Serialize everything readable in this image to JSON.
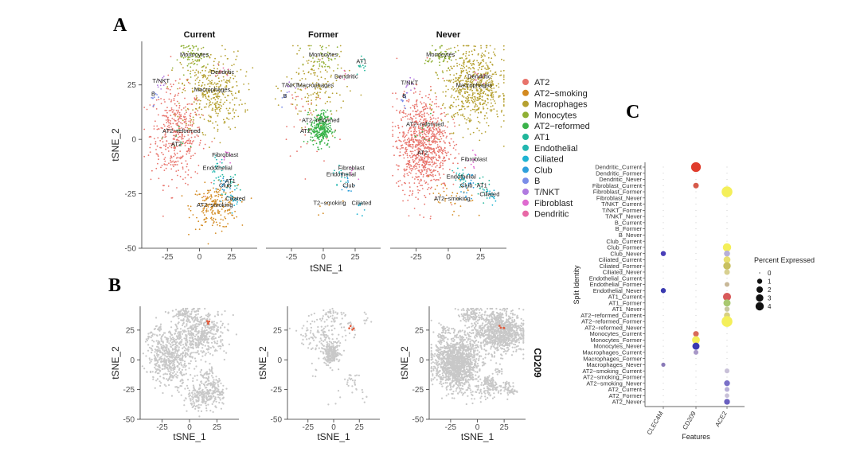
{
  "panel_letters": [
    "A",
    "B",
    "C"
  ],
  "chart_data": [
    {
      "type": "scatter",
      "panel": "A",
      "facets": [
        "Current",
        "Former",
        "Never"
      ],
      "xlabel": "tSNE_1",
      "ylabel": "tSNE_2",
      "x_ticks": [
        -25,
        0,
        25
      ],
      "y_ticks": [
        25,
        0,
        -25,
        -50
      ],
      "ylim": [
        -50,
        45
      ],
      "legend": {
        "position": "right",
        "entries": [
          {
            "name": "AT2",
            "color": "#e8736b"
          },
          {
            "name": "AT2−smoking",
            "color": "#d38a20"
          },
          {
            "name": "Macrophages",
            "color": "#b5a030"
          },
          {
            "name": "Monocytes",
            "color": "#8fb034"
          },
          {
            "name": "AT2−reformed",
            "color": "#3ab34a"
          },
          {
            "name": "AT1",
            "color": "#20b69a"
          },
          {
            "name": "Endothelial",
            "color": "#22b7b0"
          },
          {
            "name": "Ciliated",
            "color": "#1fb3d2"
          },
          {
            "name": "Club",
            "color": "#2e9fdb"
          },
          {
            "name": "B",
            "color": "#7a8de8"
          },
          {
            "name": "T/NKT",
            "color": "#b07ae0"
          },
          {
            "name": "Fibroblast",
            "color": "#df6bd0"
          },
          {
            "name": "Dendritic",
            "color": "#e868a6"
          }
        ]
      },
      "annotations": {
        "Current": [
          "Monocytes",
          "T/NKT",
          "Dendritic",
          "Macrophages",
          "B",
          "AT2−reformed",
          "AT2",
          "Fibroblast",
          "Endothelial",
          "AT1",
          "Club",
          "Ciliated",
          "AT2−smoking"
        ],
        "Former": [
          "Monocytes",
          "AT1",
          "Dendritic",
          "T/NKT",
          "B",
          "Macrophages",
          "AT2−reformed",
          "T2−smoking",
          "AT2",
          "Fibroblast",
          "Endothelial",
          "Club",
          "Ciliated"
        ],
        "Never": [
          "Monocytes",
          "Dendritic",
          "T/NKT",
          "B",
          "Macrophages",
          "AT2−reformed",
          "AT2",
          "Fibroblast",
          "Endothelial",
          "Club",
          "AT2−smoking",
          "Ciliated",
          "AT1"
        ]
      },
      "clusters": [
        {
          "name": "AT2",
          "color": "#e8736b",
          "center": {
            "Current": [
              -18,
              2
            ],
            "Former": [
              -14,
              8
            ],
            "Never": [
              -20,
              -2
            ]
          },
          "spread": [
            10,
            11
          ],
          "n": {
            "Current": 420,
            "Former": 40,
            "Never": 900
          }
        },
        {
          "name": "AT2−smoking",
          "color": "#d38a20",
          "center": {
            "Current": [
              12,
              -31
            ],
            "Former": [
              5,
              -30
            ],
            "Never": [
              3,
              -28
            ]
          },
          "spread": [
            9,
            5
          ],
          "n": {
            "Current": 200,
            "Former": 6,
            "Never": 40
          }
        },
        {
          "name": "Macrophages",
          "color": "#b5a030",
          "center": {
            "Current": [
              10,
              22
            ],
            "Former": [
              -6,
              24
            ],
            "Never": [
              20,
              24
            ]
          },
          "spread": [
            12,
            9
          ],
          "n": {
            "Current": 380,
            "Former": 160,
            "Never": 620
          }
        },
        {
          "name": "Monocytes",
          "color": "#8fb034",
          "center": {
            "Current": [
              -4,
              38
            ],
            "Former": [
              0,
              38
            ],
            "Never": [
              -6,
              38
            ]
          },
          "spread": [
            6,
            3
          ],
          "n": {
            "Current": 70,
            "Former": 40,
            "Never": 60
          }
        },
        {
          "name": "AT2−reformed",
          "color": "#3ab34a",
          "center": {
            "Current": [
              -14,
              0
            ],
            "Former": [
              -2,
              5
            ],
            "Never": [
              -18,
              3
            ]
          },
          "spread": [
            4,
            4
          ],
          "n": {
            "Current": 10,
            "Former": 280,
            "Never": 10
          }
        },
        {
          "name": "AT1",
          "color": "#20b69a",
          "center": {
            "Current": [
              24,
              -20
            ],
            "Former": [
              30,
              35
            ],
            "Never": [
              26,
              -22
            ]
          },
          "spread": [
            3,
            3
          ],
          "n": {
            "Current": 20,
            "Former": 12,
            "Never": 20
          }
        },
        {
          "name": "Endothelial",
          "color": "#22b7b0",
          "center": {
            "Current": [
              14,
              -14
            ],
            "Former": [
              14,
              -17
            ],
            "Never": [
              10,
              -18
            ]
          },
          "spread": [
            3,
            3
          ],
          "n": {
            "Current": 25,
            "Former": 15,
            "Never": 25
          }
        },
        {
          "name": "Ciliated",
          "color": "#1fb3d2",
          "center": {
            "Current": [
              28,
              -28
            ],
            "Former": [
              30,
              -30
            ],
            "Never": [
              32,
              -26
            ]
          },
          "spread": [
            2,
            2
          ],
          "n": {
            "Current": 15,
            "Former": 8,
            "Never": 18
          }
        },
        {
          "name": "Club",
          "color": "#2e9fdb",
          "center": {
            "Current": [
              20,
              -22
            ],
            "Former": [
              20,
              -22
            ],
            "Never": [
              14,
              -22
            ]
          },
          "spread": [
            3,
            3
          ],
          "n": {
            "Current": 20,
            "Former": 12,
            "Never": 25
          }
        },
        {
          "name": "B",
          "color": "#7a8de8",
          "center": {
            "Current": [
              -36,
              20
            ],
            "Former": [
              -30,
              19
            ],
            "Never": [
              -34,
              19
            ]
          },
          "spread": [
            1.5,
            2
          ],
          "n": {
            "Current": 10,
            "Former": 5,
            "Never": 12
          }
        },
        {
          "name": "T/NKT",
          "color": "#b07ae0",
          "center": {
            "Current": [
              -30,
              26
            ],
            "Former": [
              -26,
              24
            ],
            "Never": [
              -30,
              25
            ]
          },
          "spread": [
            2,
            2
          ],
          "n": {
            "Current": 10,
            "Former": 5,
            "Never": 12
          }
        },
        {
          "name": "Fibroblast",
          "color": "#df6bd0",
          "center": {
            "Current": [
              20,
              -8
            ],
            "Former": [
              22,
              -14
            ],
            "Never": [
              20,
              -10
            ]
          },
          "spread": [
            2,
            2
          ],
          "n": {
            "Current": 10,
            "Former": 6,
            "Never": 10
          }
        },
        {
          "name": "Dendritic",
          "color": "#e868a6",
          "center": {
            "Current": [
              18,
              30
            ],
            "Former": [
              18,
              28
            ],
            "Never": [
              24,
              28
            ]
          },
          "spread": [
            3,
            2
          ],
          "n": {
            "Current": 10,
            "Former": 6,
            "Never": 10
          }
        }
      ]
    },
    {
      "type": "scatter",
      "panel": "B",
      "facets": [
        "Current",
        "Former",
        "Never"
      ],
      "feature": "CD209",
      "xlabel": "tSNE_1",
      "ylabel": "tSNE_2",
      "x_ticks": [
        -25,
        0,
        25
      ],
      "y_ticks": [
        25,
        0,
        -25,
        -50
      ],
      "ylim": [
        -50,
        45
      ],
      "color_base": "#c8c8c8",
      "color_high": "#e05a3a"
    },
    {
      "type": "dot",
      "panel": "C",
      "xlabel": "Features",
      "ylabel": "Split Identity",
      "features": [
        "CLEC4M",
        "CD209",
        "ACE2"
      ],
      "legend": {
        "title": "Percent Expressed",
        "position": "right",
        "entries": [
          {
            "label": "0",
            "value": 0
          },
          {
            "label": "1",
            "value": 1
          },
          {
            "label": "2",
            "value": 2
          },
          {
            "label": "3",
            "value": 3
          },
          {
            "label": "4",
            "value": 4
          }
        ]
      },
      "rows": [
        "Dendritic_Current",
        "Dendritic_Former",
        "Dendritic_Never",
        "Fibroblast_Current",
        "Fibroblast_Former",
        "Fibroblast_Never",
        "T/NKT_Current",
        "T/NKT_Former",
        "T/NKT_Never",
        "B_Current",
        "B_Former",
        "B_Never",
        "Club_Current",
        "Club_Former",
        "Club_Never",
        "Ciliated_Current",
        "Ciliated_Former",
        "Ciliated_Never",
        "Endothelial_Current",
        "Endothelial_Former",
        "Endothelial_Never",
        "AT1_Current",
        "AT1_Former",
        "AT1_Never",
        "AT2−reformed_Current",
        "AT2−reformed_Former",
        "AT2−reformed_Never",
        "Monocytes_Current",
        "Monocytes_Former",
        "Monocytes_Never",
        "Macrophages_Current",
        "Macrophages_Former",
        "Macrophages_Never",
        "AT2−smoking_Current",
        "AT2−smoking_Former",
        "AT2−smoking_Never",
        "AT2_Current",
        "AT2_Former",
        "AT2_Never"
      ],
      "points": [
        {
          "row": "Dendritic_Current",
          "feature": "CD209",
          "pct": 3.6,
          "color": "#e03c2c"
        },
        {
          "row": "Fibroblast_Current",
          "feature": "CD209",
          "pct": 0.8,
          "color": "#d65a4a"
        },
        {
          "row": "Fibroblast_Former",
          "feature": "ACE2",
          "pct": 4.6,
          "color": "#f4ef5a"
        },
        {
          "row": "Club_Former",
          "feature": "ACE2",
          "pct": 2.4,
          "color": "#f4ef5a"
        },
        {
          "row": "Club_Never",
          "feature": "CLEC4M",
          "pct": 0.6,
          "color": "#4a3fb8"
        },
        {
          "row": "Club_Never",
          "feature": "ACE2",
          "pct": 1.0,
          "color": "#b8b0d8"
        },
        {
          "row": "Ciliated_Current",
          "feature": "ACE2",
          "pct": 1.4,
          "color": "#e8e070"
        },
        {
          "row": "Ciliated_Former",
          "feature": "ACE2",
          "pct": 1.8,
          "color": "#c8c060"
        },
        {
          "row": "Ciliated_Never",
          "feature": "ACE2",
          "pct": 0.8,
          "color": "#d8d090"
        },
        {
          "row": "Endothelial_Former",
          "feature": "ACE2",
          "pct": 0.5,
          "color": "#c8b898"
        },
        {
          "row": "Endothelial_Never",
          "feature": "CLEC4M",
          "pct": 0.6,
          "color": "#3a3ab0"
        },
        {
          "row": "AT1_Current",
          "feature": "ACE2",
          "pct": 2.2,
          "color": "#d85a5a"
        },
        {
          "row": "AT1_Former",
          "feature": "ACE2",
          "pct": 1.6,
          "color": "#a8c870"
        },
        {
          "row": "AT1_Never",
          "feature": "ACE2",
          "pct": 0.6,
          "color": "#c8c8a0"
        },
        {
          "row": "AT2−reformed_Current",
          "feature": "ACE2",
          "pct": 1.0,
          "color": "#d8d080"
        },
        {
          "row": "AT2−reformed_Former",
          "feature": "ACE2",
          "pct": 4.6,
          "color": "#f4ef5a"
        },
        {
          "row": "Monocytes_Current",
          "feature": "CD209",
          "pct": 0.8,
          "color": "#d86a5a"
        },
        {
          "row": "Monocytes_Former",
          "feature": "CD209",
          "pct": 2.0,
          "color": "#f4ef5a"
        },
        {
          "row": "Monocytes_Never",
          "feature": "CD209",
          "pct": 1.6,
          "color": "#3a3ab0"
        },
        {
          "row": "Macrophages_Current",
          "feature": "CD209",
          "pct": 0.5,
          "color": "#a898c8"
        },
        {
          "row": "Macrophages_Never",
          "feature": "CLEC4M",
          "pct": 0.3,
          "color": "#8a7ab8"
        },
        {
          "row": "AT2−smoking_Current",
          "feature": "ACE2",
          "pct": 0.5,
          "color": "#c8c0d8"
        },
        {
          "row": "AT2−smoking_Never",
          "feature": "ACE2",
          "pct": 0.9,
          "color": "#7a70c8"
        },
        {
          "row": "AT2_Current",
          "feature": "ACE2",
          "pct": 0.5,
          "color": "#b8b0d8"
        },
        {
          "row": "AT2_Former",
          "feature": "ACE2",
          "pct": 0.4,
          "color": "#c8c0d8"
        },
        {
          "row": "AT2_Never",
          "feature": "ACE2",
          "pct": 0.9,
          "color": "#6a60c0"
        }
      ]
    }
  ]
}
